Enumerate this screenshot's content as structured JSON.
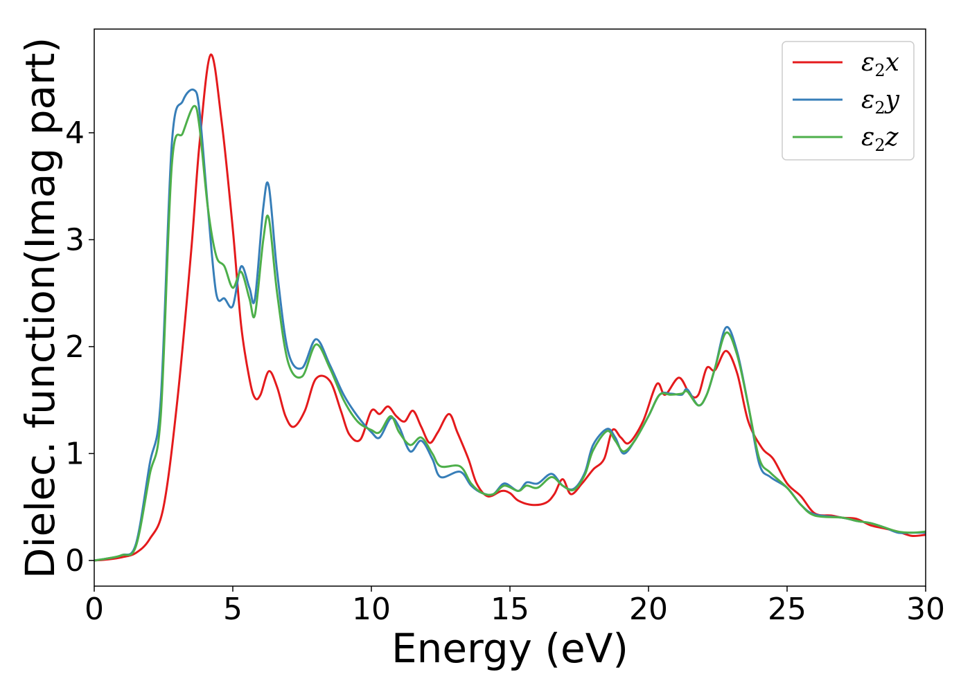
{
  "chart_data": {
    "type": "line",
    "title": "",
    "xlabel": "Energy (eV)",
    "ylabel": "Dielec. function(Imag part)",
    "xlim": [
      0,
      30
    ],
    "ylim": [
      -0.24,
      4.97
    ],
    "xticks": [
      0,
      5,
      10,
      15,
      20,
      25,
      30
    ],
    "yticks": [
      0,
      1,
      2,
      3,
      4
    ],
    "grid": false,
    "legend_position": "top-right",
    "series": [
      {
        "name": "ε2x",
        "legend_main": "ε",
        "legend_sub": "2",
        "legend_suffix": "x",
        "color": "#e41a1c",
        "points": [
          [
            0,
            0
          ],
          [
            0.5,
            0.01
          ],
          [
            1,
            0.03
          ],
          [
            1.5,
            0.07
          ],
          [
            2,
            0.2
          ],
          [
            2.5,
            0.5
          ],
          [
            3,
            1.5
          ],
          [
            3.5,
            2.9
          ],
          [
            3.8,
            3.9
          ],
          [
            4.2,
            4.73
          ],
          [
            4.6,
            4.1
          ],
          [
            5,
            3.1
          ],
          [
            5.3,
            2.2
          ],
          [
            5.6,
            1.7
          ],
          [
            5.8,
            1.52
          ],
          [
            6,
            1.55
          ],
          [
            6.3,
            1.77
          ],
          [
            6.6,
            1.62
          ],
          [
            6.9,
            1.35
          ],
          [
            7.2,
            1.25
          ],
          [
            7.6,
            1.4
          ],
          [
            8,
            1.7
          ],
          [
            8.5,
            1.68
          ],
          [
            8.9,
            1.4
          ],
          [
            9.2,
            1.18
          ],
          [
            9.6,
            1.13
          ],
          [
            10,
            1.4
          ],
          [
            10.3,
            1.37
          ],
          [
            10.6,
            1.44
          ],
          [
            10.9,
            1.35
          ],
          [
            11.2,
            1.3
          ],
          [
            11.5,
            1.4
          ],
          [
            11.8,
            1.25
          ],
          [
            12.1,
            1.1
          ],
          [
            12.4,
            1.2
          ],
          [
            12.8,
            1.37
          ],
          [
            13.1,
            1.2
          ],
          [
            13.5,
            0.95
          ],
          [
            13.8,
            0.72
          ],
          [
            14.2,
            0.6
          ],
          [
            14.7,
            0.65
          ],
          [
            15,
            0.63
          ],
          [
            15.3,
            0.56
          ],
          [
            15.8,
            0.52
          ],
          [
            16.3,
            0.54
          ],
          [
            16.6,
            0.62
          ],
          [
            16.9,
            0.76
          ],
          [
            17.2,
            0.62
          ],
          [
            17.6,
            0.72
          ],
          [
            18,
            0.85
          ],
          [
            18.4,
            0.95
          ],
          [
            18.7,
            1.22
          ],
          [
            19,
            1.15
          ],
          [
            19.3,
            1.1
          ],
          [
            19.8,
            1.3
          ],
          [
            20.3,
            1.65
          ],
          [
            20.6,
            1.55
          ],
          [
            21.1,
            1.71
          ],
          [
            21.5,
            1.55
          ],
          [
            21.8,
            1.55
          ],
          [
            22.1,
            1.8
          ],
          [
            22.4,
            1.78
          ],
          [
            22.8,
            1.96
          ],
          [
            23.2,
            1.75
          ],
          [
            23.6,
            1.3
          ],
          [
            24.1,
            1.05
          ],
          [
            24.5,
            0.95
          ],
          [
            25,
            0.72
          ],
          [
            25.5,
            0.6
          ],
          [
            26,
            0.44
          ],
          [
            26.6,
            0.42
          ],
          [
            27,
            0.4
          ],
          [
            27.5,
            0.39
          ],
          [
            28,
            0.33
          ],
          [
            28.5,
            0.3
          ],
          [
            29,
            0.27
          ],
          [
            29.5,
            0.23
          ],
          [
            30,
            0.24
          ]
        ]
      },
      {
        "name": "ε2y",
        "legend_main": "ε",
        "legend_sub": "2",
        "legend_suffix": "y",
        "color": "#377eb8",
        "points": [
          [
            0,
            0
          ],
          [
            0.5,
            0.02
          ],
          [
            1,
            0.05
          ],
          [
            1.5,
            0.15
          ],
          [
            2,
            0.9
          ],
          [
            2.4,
            1.5
          ],
          [
            2.8,
            3.9
          ],
          [
            3.2,
            4.3
          ],
          [
            3.6,
            4.4
          ],
          [
            3.8,
            4.2
          ],
          [
            4.1,
            3.3
          ],
          [
            4.4,
            2.5
          ],
          [
            4.7,
            2.45
          ],
          [
            5,
            2.38
          ],
          [
            5.3,
            2.75
          ],
          [
            5.6,
            2.55
          ],
          [
            5.8,
            2.45
          ],
          [
            6.1,
            3.3
          ],
          [
            6.3,
            3.5
          ],
          [
            6.6,
            2.7
          ],
          [
            7,
            1.95
          ],
          [
            7.5,
            1.8
          ],
          [
            8,
            2.07
          ],
          [
            8.5,
            1.83
          ],
          [
            9,
            1.55
          ],
          [
            9.5,
            1.35
          ],
          [
            10,
            1.2
          ],
          [
            10.3,
            1.15
          ],
          [
            10.7,
            1.33
          ],
          [
            11,
            1.25
          ],
          [
            11.4,
            1.02
          ],
          [
            11.8,
            1.12
          ],
          [
            12.2,
            0.95
          ],
          [
            12.5,
            0.78
          ],
          [
            13.2,
            0.83
          ],
          [
            13.6,
            0.7
          ],
          [
            14,
            0.63
          ],
          [
            14.4,
            0.62
          ],
          [
            14.8,
            0.72
          ],
          [
            15.3,
            0.65
          ],
          [
            15.6,
            0.73
          ],
          [
            16,
            0.72
          ],
          [
            16.5,
            0.81
          ],
          [
            16.9,
            0.7
          ],
          [
            17.3,
            0.67
          ],
          [
            17.7,
            0.82
          ],
          [
            18,
            1.08
          ],
          [
            18.5,
            1.23
          ],
          [
            18.8,
            1.15
          ],
          [
            19.1,
            1.0
          ],
          [
            19.5,
            1.12
          ],
          [
            20,
            1.35
          ],
          [
            20.4,
            1.55
          ],
          [
            20.8,
            1.56
          ],
          [
            21.2,
            1.55
          ],
          [
            21.4,
            1.6
          ],
          [
            21.8,
            1.45
          ],
          [
            22.1,
            1.55
          ],
          [
            22.4,
            1.8
          ],
          [
            22.8,
            2.18
          ],
          [
            23.2,
            1.95
          ],
          [
            23.6,
            1.45
          ],
          [
            24,
            0.9
          ],
          [
            24.4,
            0.78
          ],
          [
            25,
            0.68
          ],
          [
            25.5,
            0.52
          ],
          [
            26,
            0.43
          ],
          [
            27,
            0.4
          ],
          [
            27.5,
            0.37
          ],
          [
            28,
            0.35
          ],
          [
            28.5,
            0.31
          ],
          [
            29,
            0.26
          ],
          [
            29.5,
            0.26
          ],
          [
            30,
            0.26
          ]
        ]
      },
      {
        "name": "ε2z",
        "legend_main": "ε",
        "legend_sub": "2",
        "legend_suffix": "z",
        "color": "#4daf4a",
        "points": [
          [
            0,
            0
          ],
          [
            0.5,
            0.02
          ],
          [
            1,
            0.05
          ],
          [
            1.5,
            0.13
          ],
          [
            2,
            0.8
          ],
          [
            2.4,
            1.35
          ],
          [
            2.8,
            3.7
          ],
          [
            3.2,
            4.0
          ],
          [
            3.6,
            4.25
          ],
          [
            3.8,
            4.05
          ],
          [
            4.1,
            3.3
          ],
          [
            4.4,
            2.85
          ],
          [
            4.7,
            2.75
          ],
          [
            5,
            2.55
          ],
          [
            5.3,
            2.7
          ],
          [
            5.6,
            2.45
          ],
          [
            5.8,
            2.3
          ],
          [
            6.1,
            3.0
          ],
          [
            6.3,
            3.2
          ],
          [
            6.6,
            2.5
          ],
          [
            7,
            1.85
          ],
          [
            7.5,
            1.72
          ],
          [
            8,
            2.02
          ],
          [
            8.5,
            1.8
          ],
          [
            9,
            1.5
          ],
          [
            9.5,
            1.3
          ],
          [
            10,
            1.22
          ],
          [
            10.3,
            1.2
          ],
          [
            10.7,
            1.35
          ],
          [
            11,
            1.2
          ],
          [
            11.4,
            1.08
          ],
          [
            11.8,
            1.15
          ],
          [
            12.2,
            1.0
          ],
          [
            12.5,
            0.88
          ],
          [
            13.2,
            0.88
          ],
          [
            13.6,
            0.72
          ],
          [
            14,
            0.63
          ],
          [
            14.4,
            0.62
          ],
          [
            14.8,
            0.7
          ],
          [
            15.3,
            0.65
          ],
          [
            15.6,
            0.7
          ],
          [
            16,
            0.68
          ],
          [
            16.5,
            0.78
          ],
          [
            16.9,
            0.7
          ],
          [
            17.3,
            0.66
          ],
          [
            17.7,
            0.8
          ],
          [
            18,
            1.03
          ],
          [
            18.5,
            1.21
          ],
          [
            18.8,
            1.12
          ],
          [
            19.1,
            1.02
          ],
          [
            19.5,
            1.12
          ],
          [
            20,
            1.35
          ],
          [
            20.4,
            1.55
          ],
          [
            20.8,
            1.55
          ],
          [
            21.2,
            1.56
          ],
          [
            21.4,
            1.58
          ],
          [
            21.8,
            1.45
          ],
          [
            22.1,
            1.55
          ],
          [
            22.4,
            1.8
          ],
          [
            22.8,
            2.13
          ],
          [
            23.2,
            1.92
          ],
          [
            23.6,
            1.45
          ],
          [
            24,
            0.95
          ],
          [
            24.4,
            0.82
          ],
          [
            25,
            0.68
          ],
          [
            25.5,
            0.52
          ],
          [
            26,
            0.42
          ],
          [
            27,
            0.4
          ],
          [
            27.5,
            0.37
          ],
          [
            28,
            0.35
          ],
          [
            28.5,
            0.31
          ],
          [
            29,
            0.27
          ],
          [
            29.5,
            0.26
          ],
          [
            30,
            0.27
          ]
        ]
      }
    ]
  }
}
